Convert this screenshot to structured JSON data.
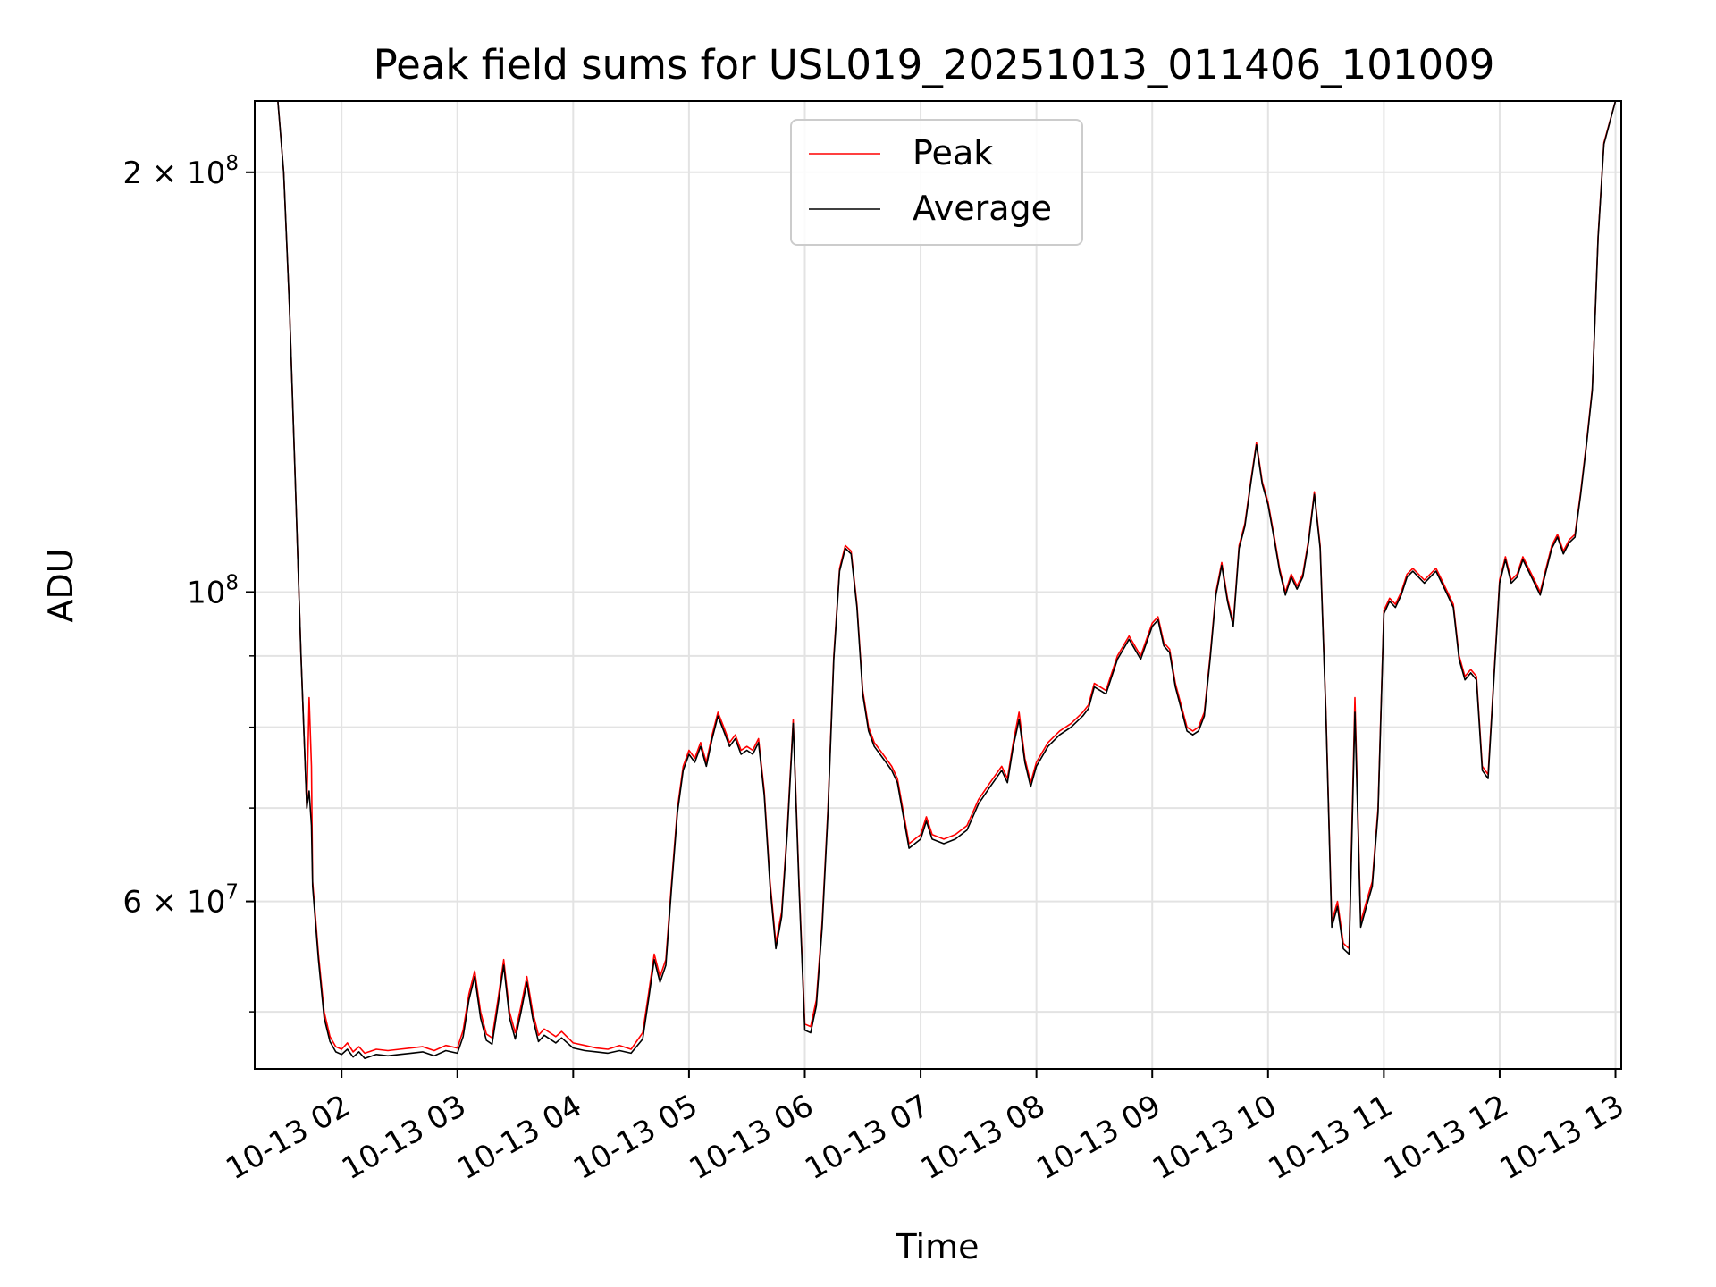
{
  "chart_data": {
    "type": "line",
    "title": "Peak field sums for USL019_20251013_011406_101009",
    "xlabel": "Time",
    "ylabel": "ADU",
    "yscale": "log",
    "ylim": [
      45500000,
      225000000
    ],
    "xlim": [
      1.25,
      13.05
    ],
    "grid": true,
    "legend_position": "top-center",
    "x_ticks": [
      {
        "value": 2,
        "label": "10-13 02"
      },
      {
        "value": 3,
        "label": "10-13 03"
      },
      {
        "value": 4,
        "label": "10-13 04"
      },
      {
        "value": 5,
        "label": "10-13 05"
      },
      {
        "value": 6,
        "label": "10-13 06"
      },
      {
        "value": 7,
        "label": "10-13 07"
      },
      {
        "value": 8,
        "label": "10-13 08"
      },
      {
        "value": 9,
        "label": "10-13 09"
      },
      {
        "value": 10,
        "label": "10-13 10"
      },
      {
        "value": 11,
        "label": "10-13 11"
      },
      {
        "value": 12,
        "label": "10-13 12"
      },
      {
        "value": 13,
        "label": "10-13 13"
      }
    ],
    "y_major_ticks": [
      {
        "value": 60000000,
        "base": "6 × 10",
        "exp": "7"
      },
      {
        "value": 100000000,
        "base": "10",
        "exp": "8"
      },
      {
        "value": 200000000,
        "base": "2 × 10",
        "exp": "8"
      }
    ],
    "y_minor_ticks": [
      50000000,
      70000000,
      80000000,
      90000000
    ],
    "series": [
      {
        "name": "Peak",
        "color": "#ff0000",
        "x": [
          1.25,
          1.45,
          1.5,
          1.55,
          1.6,
          1.65,
          1.7,
          1.72,
          1.74,
          1.75,
          1.8,
          1.85,
          1.9,
          1.95,
          2.0,
          2.05,
          2.1,
          2.15,
          2.2,
          2.3,
          2.4,
          2.5,
          2.6,
          2.7,
          2.8,
          2.9,
          3.0,
          3.05,
          3.1,
          3.15,
          3.2,
          3.25,
          3.3,
          3.35,
          3.4,
          3.45,
          3.5,
          3.55,
          3.6,
          3.65,
          3.7,
          3.75,
          3.8,
          3.85,
          3.9,
          4.0,
          4.1,
          4.2,
          4.3,
          4.4,
          4.5,
          4.6,
          4.65,
          4.7,
          4.75,
          4.8,
          4.85,
          4.9,
          4.95,
          5.0,
          5.05,
          5.1,
          5.15,
          5.2,
          5.25,
          5.3,
          5.35,
          5.4,
          5.45,
          5.5,
          5.55,
          5.6,
          5.65,
          5.7,
          5.75,
          5.8,
          5.85,
          5.9,
          5.95,
          6.0,
          6.05,
          6.1,
          6.15,
          6.2,
          6.25,
          6.3,
          6.35,
          6.4,
          6.45,
          6.5,
          6.55,
          6.6,
          6.65,
          6.7,
          6.75,
          6.8,
          6.9,
          7.0,
          7.05,
          7.1,
          7.2,
          7.3,
          7.4,
          7.5,
          7.6,
          7.7,
          7.75,
          7.8,
          7.85,
          7.9,
          7.95,
          8.0,
          8.1,
          8.2,
          8.3,
          8.4,
          8.45,
          8.5,
          8.6,
          8.7,
          8.8,
          8.9,
          9.0,
          9.05,
          9.1,
          9.15,
          9.2,
          9.3,
          9.35,
          9.4,
          9.45,
          9.5,
          9.55,
          9.6,
          9.65,
          9.7,
          9.75,
          9.8,
          9.85,
          9.9,
          9.95,
          10.0,
          10.05,
          10.1,
          10.15,
          10.2,
          10.25,
          10.3,
          10.35,
          10.4,
          10.45,
          10.5,
          10.55,
          10.6,
          10.65,
          10.7,
          10.75,
          10.8,
          10.85,
          10.9,
          10.95,
          11.0,
          11.05,
          11.1,
          11.15,
          11.2,
          11.25,
          11.3,
          11.35,
          11.4,
          11.45,
          11.5,
          11.55,
          11.6,
          11.65,
          11.7,
          11.75,
          11.8,
          11.85,
          11.9,
          11.95,
          12.0,
          12.05,
          12.1,
          12.15,
          12.2,
          12.25,
          12.3,
          12.35,
          12.4,
          12.45,
          12.5,
          12.55,
          12.6,
          12.65,
          12.7,
          12.75,
          12.8,
          12.85,
          12.9,
          13.0,
          13.05
        ],
        "y": [
          225000000,
          225000000,
          200000000,
          160000000,
          120000000,
          90000000,
          70000000,
          84000000,
          75000000,
          62000000,
          55000000,
          50000000,
          48000000,
          47200000,
          47000000,
          47500000,
          46800000,
          47200000,
          46700000,
          47000000,
          46900000,
          47000000,
          47100000,
          47200000,
          46900000,
          47300000,
          47100000,
          48500000,
          51500000,
          53500000,
          50000000,
          48200000,
          47900000,
          51000000,
          54500000,
          50000000,
          48300000,
          50500000,
          53000000,
          50000000,
          48100000,
          48600000,
          48300000,
          48000000,
          48400000,
          47500000,
          47300000,
          47100000,
          47000000,
          47300000,
          47000000,
          48300000,
          51500000,
          55000000,
          53000000,
          54500000,
          62000000,
          70000000,
          75000000,
          77000000,
          76000000,
          78000000,
          75500000,
          79000000,
          82000000,
          80000000,
          78000000,
          79000000,
          77000000,
          77500000,
          77000000,
          78500000,
          72000000,
          62000000,
          56000000,
          59000000,
          68000000,
          81000000,
          62000000,
          49000000,
          48800000,
          51000000,
          58000000,
          70000000,
          90000000,
          104000000,
          108000000,
          107000000,
          98000000,
          85000000,
          80000000,
          78000000,
          77000000,
          76000000,
          75000000,
          73500000,
          66000000,
          67000000,
          69000000,
          67000000,
          66500000,
          67000000,
          68000000,
          71000000,
          73000000,
          75000000,
          73500000,
          78000000,
          82000000,
          76000000,
          73000000,
          75500000,
          78000000,
          79500000,
          80500000,
          82000000,
          83000000,
          86000000,
          85000000,
          90000000,
          93000000,
          90000000,
          95000000,
          96000000,
          92000000,
          91000000,
          86000000,
          80000000,
          79500000,
          80000000,
          82000000,
          90000000,
          100000000,
          105000000,
          99000000,
          95000000,
          108000000,
          112000000,
          120000000,
          128000000,
          120000000,
          116000000,
          110000000,
          104000000,
          100000000,
          103000000,
          101000000,
          103000000,
          109000000,
          118000000,
          108000000,
          82000000,
          58000000,
          60000000,
          56000000,
          55500000,
          84000000,
          58000000,
          60000000,
          62000000,
          70000000,
          97000000,
          99000000,
          98000000,
          100000000,
          103000000,
          104000000,
          103000000,
          102000000,
          103000000,
          104000000,
          102000000,
          100000000,
          98000000,
          90000000,
          87000000,
          88000000,
          87000000,
          75000000,
          74000000,
          87000000,
          102000000,
          106000000,
          102000000,
          103000000,
          106000000,
          104000000,
          102000000,
          100000000,
          104000000,
          108000000,
          110000000,
          107000000,
          109000000,
          110000000,
          118000000,
          128000000,
          140000000,
          180000000,
          210000000,
          225000000,
          225000000
        ]
      },
      {
        "name": "Average",
        "color": "#000000",
        "x": [
          1.25,
          1.45,
          1.5,
          1.55,
          1.6,
          1.65,
          1.7,
          1.72,
          1.74,
          1.75,
          1.8,
          1.85,
          1.9,
          1.95,
          2.0,
          2.05,
          2.1,
          2.15,
          2.2,
          2.3,
          2.4,
          2.5,
          2.6,
          2.7,
          2.8,
          2.9,
          3.0,
          3.05,
          3.1,
          3.15,
          3.2,
          3.25,
          3.3,
          3.35,
          3.4,
          3.45,
          3.5,
          3.55,
          3.6,
          3.65,
          3.7,
          3.75,
          3.8,
          3.85,
          3.9,
          4.0,
          4.1,
          4.2,
          4.3,
          4.4,
          4.5,
          4.6,
          4.65,
          4.7,
          4.75,
          4.8,
          4.85,
          4.9,
          4.95,
          5.0,
          5.05,
          5.1,
          5.15,
          5.2,
          5.25,
          5.3,
          5.35,
          5.4,
          5.45,
          5.5,
          5.55,
          5.6,
          5.65,
          5.7,
          5.75,
          5.8,
          5.85,
          5.9,
          5.95,
          6.0,
          6.05,
          6.1,
          6.15,
          6.2,
          6.25,
          6.3,
          6.35,
          6.4,
          6.45,
          6.5,
          6.55,
          6.6,
          6.65,
          6.7,
          6.75,
          6.8,
          6.9,
          7.0,
          7.05,
          7.1,
          7.2,
          7.3,
          7.4,
          7.5,
          7.6,
          7.7,
          7.75,
          7.8,
          7.85,
          7.9,
          7.95,
          8.0,
          8.1,
          8.2,
          8.3,
          8.4,
          8.45,
          8.5,
          8.6,
          8.7,
          8.8,
          8.9,
          9.0,
          9.05,
          9.1,
          9.15,
          9.2,
          9.3,
          9.35,
          9.4,
          9.45,
          9.5,
          9.55,
          9.6,
          9.65,
          9.7,
          9.75,
          9.8,
          9.85,
          9.9,
          9.95,
          10.0,
          10.05,
          10.1,
          10.15,
          10.2,
          10.25,
          10.3,
          10.35,
          10.4,
          10.45,
          10.5,
          10.55,
          10.6,
          10.65,
          10.7,
          10.75,
          10.8,
          10.85,
          10.9,
          10.95,
          11.0,
          11.05,
          11.1,
          11.15,
          11.2,
          11.25,
          11.3,
          11.35,
          11.4,
          11.45,
          11.5,
          11.55,
          11.6,
          11.65,
          11.7,
          11.75,
          11.8,
          11.85,
          11.9,
          11.95,
          12.0,
          12.05,
          12.1,
          12.15,
          12.2,
          12.25,
          12.3,
          12.35,
          12.4,
          12.45,
          12.5,
          12.55,
          12.6,
          12.65,
          12.7,
          12.75,
          12.8,
          12.85,
          12.9,
          13.0,
          13.05
        ],
        "y": [
          225000000,
          225000000,
          200000000,
          160000000,
          120000000,
          90000000,
          70000000,
          72000000,
          68000000,
          61500000,
          54500000,
          49500000,
          47600000,
          46800000,
          46600000,
          47000000,
          46400000,
          46800000,
          46300000,
          46600000,
          46500000,
          46600000,
          46700000,
          46800000,
          46500000,
          46900000,
          46700000,
          48000000,
          51000000,
          53000000,
          49500000,
          47700000,
          47400000,
          50500000,
          54000000,
          49500000,
          47800000,
          50000000,
          52500000,
          49500000,
          47600000,
          48100000,
          47800000,
          47500000,
          47900000,
          47100000,
          46900000,
          46800000,
          46700000,
          46900000,
          46700000,
          47800000,
          51000000,
          54500000,
          52500000,
          54000000,
          61500000,
          69500000,
          74500000,
          76500000,
          75500000,
          77500000,
          75000000,
          78500000,
          81500000,
          79500000,
          77500000,
          78500000,
          76500000,
          77000000,
          76500000,
          78000000,
          71500000,
          61500000,
          55500000,
          58500000,
          67500000,
          80500000,
          61500000,
          48500000,
          48300000,
          50500000,
          57500000,
          69500000,
          89500000,
          103500000,
          107500000,
          106500000,
          97500000,
          84500000,
          79500000,
          77500000,
          76500000,
          75500000,
          74500000,
          73000000,
          65500000,
          66500000,
          68500000,
          66500000,
          66000000,
          66500000,
          67500000,
          70500000,
          72500000,
          74500000,
          73000000,
          77500000,
          81000000,
          75500000,
          72500000,
          75000000,
          77500000,
          79000000,
          80000000,
          81500000,
          82500000,
          85500000,
          84500000,
          89500000,
          92500000,
          89500000,
          94500000,
          95500000,
          91500000,
          90500000,
          85500000,
          79500000,
          79000000,
          79500000,
          81500000,
          89500000,
          99500000,
          104500000,
          98500000,
          94500000,
          107500000,
          111500000,
          119500000,
          127500000,
          119500000,
          115500000,
          109500000,
          103500000,
          99500000,
          102500000,
          100500000,
          102500000,
          108500000,
          117500000,
          107500000,
          81500000,
          57500000,
          59500000,
          55500000,
          55000000,
          82000000,
          57500000,
          59500000,
          61500000,
          69500000,
          96500000,
          98500000,
          97500000,
          99500000,
          102500000,
          103500000,
          102500000,
          101500000,
          102500000,
          103500000,
          101500000,
          99500000,
          97500000,
          89500000,
          86500000,
          87500000,
          86500000,
          74500000,
          73500000,
          86500000,
          101500000,
          105500000,
          101500000,
          102500000,
          105500000,
          103500000,
          101500000,
          99500000,
          103500000,
          107500000,
          109500000,
          106500000,
          108500000,
          109500000,
          117500000,
          127500000,
          139500000,
          179500000,
          209500000,
          225000000,
          225000000
        ]
      }
    ]
  }
}
